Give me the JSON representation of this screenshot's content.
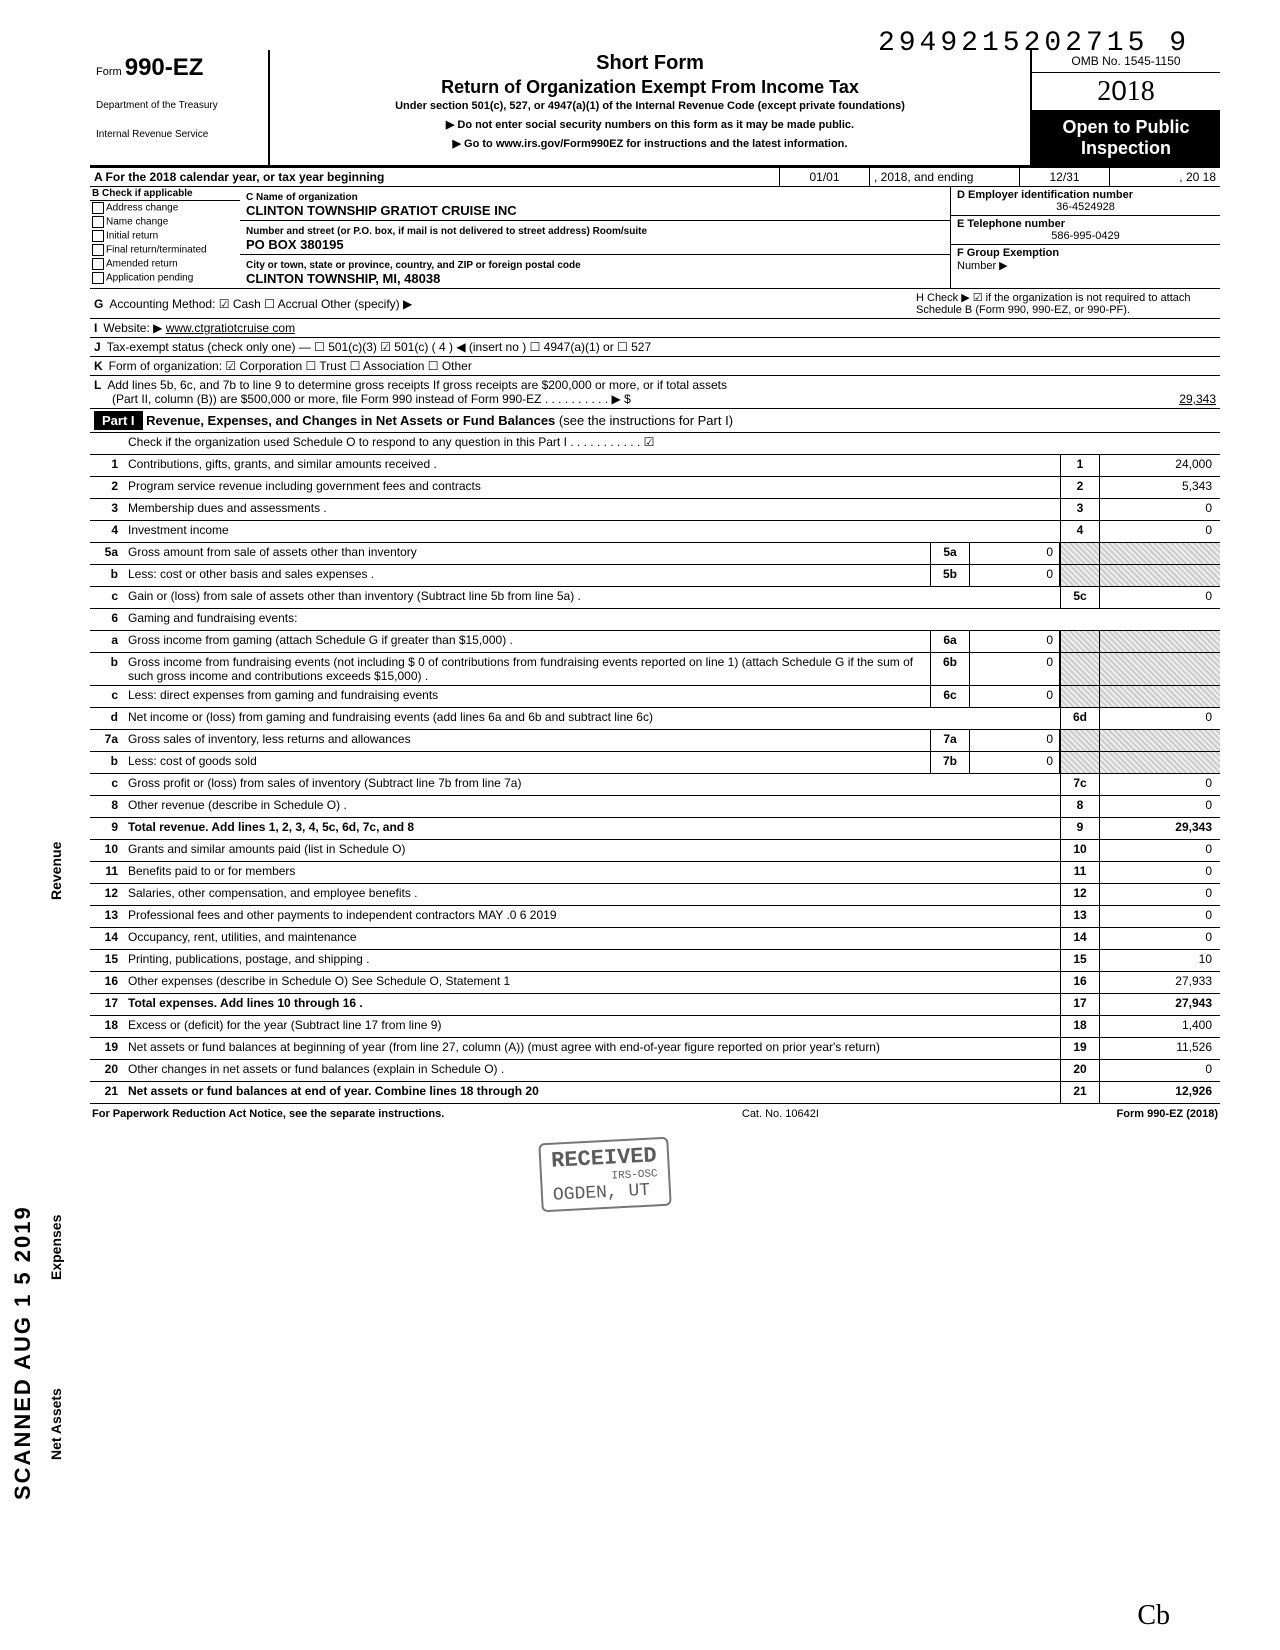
{
  "dln": "2949215202715 9",
  "header": {
    "form_prefix": "Form",
    "form_no": "990-EZ",
    "dept1": "Department of the Treasury",
    "dept2": "Internal Revenue Service",
    "short_form": "Short Form",
    "title": "Return of Organization Exempt From Income Tax",
    "under": "Under section 501(c), 527, or 4947(a)(1) of the Internal Revenue Code (except private foundations)",
    "arrow1": "▶ Do not enter social security numbers on this form as it may be made public.",
    "arrow2": "▶ Go to www.irs.gov/Form990EZ for instructions and the latest information.",
    "omb": "OMB No. 1545-1150",
    "year": "2018",
    "open1": "Open to Public",
    "open2": "Inspection"
  },
  "rowA": {
    "label": "A For the 2018 calendar year, or tax year beginning",
    "begin": "01/01",
    "mid": ", 2018, and ending",
    "end_m": "12/31",
    "end_y": ", 20  18"
  },
  "colB": {
    "hdr": "B Check if applicable",
    "items": [
      "Address change",
      "Name change",
      "Initial return",
      "Final return/terminated",
      "Amended return",
      "Application pending"
    ]
  },
  "colC": {
    "name_lbl": "C Name of organization",
    "name": "CLINTON TOWNSHIP GRATIOT CRUISE INC",
    "addr_lbl": "Number and street (or P.O. box, if mail is not delivered to street address)        Room/suite",
    "addr": "PO BOX 380195",
    "city_lbl": "City or town, state or province, country, and ZIP or foreign postal code",
    "city": "CLINTON TOWNSHIP, MI, 48038"
  },
  "colDE": {
    "d_lbl": "D Employer identification number",
    "ein": "36-4524928",
    "e_lbl": "E Telephone number",
    "phone": "586-995-0429",
    "f_lbl": "F Group Exemption",
    "f_lbl2": "Number ▶"
  },
  "lineG": {
    "k": "G",
    "text": "Accounting Method:   ☑ Cash   ☐ Accrual   Other (specify) ▶"
  },
  "lineH": {
    "text": "H Check ▶ ☑ if the organization is not required to attach Schedule B (Form 990, 990-EZ, or 990-PF)."
  },
  "lineI": {
    "k": "I",
    "lbl": "Website: ▶",
    "val": "www.ctgratiotcruise com"
  },
  "lineJ": {
    "k": "J",
    "text": "Tax-exempt status (check only one) — ☐ 501(c)(3)  ☑ 501(c) ( 4 ) ◀ (insert no ) ☐ 4947(a)(1) or  ☐ 527"
  },
  "lineK": {
    "k": "K",
    "text": "Form of organization:  ☑ Corporation   ☐ Trust   ☐ Association   ☐ Other"
  },
  "lineL": {
    "k": "L",
    "text1": "Add lines 5b, 6c, and 7b to line 9 to determine gross receipts  If gross receipts are $200,000 or more, or if total assets",
    "text2": "(Part II, column (B)) are $500,000 or more, file Form 990 instead of Form 990-EZ .   .   .   .   .   .   .   .   .   .   ▶  $",
    "val": "29,343"
  },
  "part1": {
    "label": "Part I",
    "title": "Revenue, Expenses, and Changes in Net Assets or Fund Balances",
    "rest": " (see the instructions for Part I)",
    "check": "Check if the organization used Schedule O to respond to any question in this Part I .  .  .  .  .  .  .  .  .  .  .  ☑"
  },
  "lines": {
    "l1": {
      "n": "1",
      "t": "Contributions, gifts, grants, and similar amounts received .",
      "b": "1",
      "v": "24,000"
    },
    "l2": {
      "n": "2",
      "t": "Program service revenue including government fees and contracts",
      "b": "2",
      "v": "5,343"
    },
    "l3": {
      "n": "3",
      "t": "Membership dues and assessments .",
      "b": "3",
      "v": "0"
    },
    "l4": {
      "n": "4",
      "t": "Investment income",
      "b": "4",
      "v": "0"
    },
    "l5a": {
      "n": "5a",
      "t": "Gross amount from sale of assets other than inventory",
      "mb": "5a",
      "mv": "0"
    },
    "l5b": {
      "n": "b",
      "t": "Less: cost or other basis and sales expenses .",
      "mb": "5b",
      "mv": "0"
    },
    "l5c": {
      "n": "c",
      "t": "Gain or (loss) from sale of assets other than inventory (Subtract line 5b from line 5a) .",
      "b": "5c",
      "v": "0"
    },
    "l6": {
      "n": "6",
      "t": "Gaming and fundraising events:"
    },
    "l6a": {
      "n": "a",
      "t": "Gross income from gaming (attach Schedule G if greater than $15,000) .",
      "mb": "6a",
      "mv": "0"
    },
    "l6b": {
      "n": "b",
      "t": "Gross income from fundraising events (not including  $                0 of contributions from fundraising events reported on line 1) (attach Schedule G if the sum of such gross income and contributions exceeds $15,000) .",
      "mb": "6b",
      "mv": "0"
    },
    "l6c": {
      "n": "c",
      "t": "Less: direct expenses from gaming and fundraising events",
      "mb": "6c",
      "mv": "0"
    },
    "l6d": {
      "n": "d",
      "t": "Net income or (loss) from gaming and fundraising events (add lines 6a and 6b and subtract line 6c)",
      "b": "6d",
      "v": "0"
    },
    "l7a": {
      "n": "7a",
      "t": "Gross sales of inventory, less returns and allowances",
      "mb": "7a",
      "mv": "0"
    },
    "l7b": {
      "n": "b",
      "t": "Less: cost of goods sold",
      "mb": "7b",
      "mv": "0"
    },
    "l7c": {
      "n": "c",
      "t": "Gross profit or (loss) from sales of inventory (Subtract line 7b from line 7a)",
      "b": "7c",
      "v": "0"
    },
    "l8": {
      "n": "8",
      "t": "Other revenue (describe in Schedule O) .",
      "b": "8",
      "v": "0"
    },
    "l9": {
      "n": "9",
      "t": "Total revenue. Add lines 1, 2, 3, 4, 5c, 6d, 7c, and 8",
      "b": "9",
      "v": "29,343",
      "bold": true
    },
    "l10": {
      "n": "10",
      "t": "Grants and similar amounts paid (list in Schedule O)",
      "b": "10",
      "v": "0"
    },
    "l11": {
      "n": "11",
      "t": "Benefits paid to or for members",
      "b": "11",
      "v": "0"
    },
    "l12": {
      "n": "12",
      "t": "Salaries, other compensation, and employee benefits .",
      "b": "12",
      "v": "0"
    },
    "l13": {
      "n": "13",
      "t": "Professional fees and other payments to independent contractors MAY .0 6 2019",
      "b": "13",
      "v": "0"
    },
    "l14": {
      "n": "14",
      "t": "Occupancy, rent, utilities, and maintenance",
      "b": "14",
      "v": "0"
    },
    "l15": {
      "n": "15",
      "t": "Printing, publications, postage, and shipping .",
      "b": "15",
      "v": "10"
    },
    "l16": {
      "n": "16",
      "t": "Other expenses (describe in Schedule O)  See Schedule O, Statement 1",
      "b": "16",
      "v": "27,933"
    },
    "l17": {
      "n": "17",
      "t": "Total expenses. Add lines 10 through 16 .",
      "b": "17",
      "v": "27,943",
      "bold": true
    },
    "l18": {
      "n": "18",
      "t": "Excess or (deficit) for the year (Subtract line 17 from line 9)",
      "b": "18",
      "v": "1,400"
    },
    "l19": {
      "n": "19",
      "t": "Net assets or fund balances at beginning of year (from line 27, column (A)) (must agree with end-of-year figure reported on prior year's return)",
      "b": "19",
      "v": "11,526"
    },
    "l20": {
      "n": "20",
      "t": "Other changes in net assets or fund balances (explain in Schedule O) .",
      "b": "20",
      "v": "0"
    },
    "l21": {
      "n": "21",
      "t": "Net assets or fund balances at end of year. Combine lines 18 through 20",
      "b": "21",
      "v": "12,926",
      "bold": true
    }
  },
  "stamp": {
    "l1": "RECEIVED",
    "l2": "IRS-OSC",
    "l3": "OGDEN, UT"
  },
  "side": {
    "rev": "Revenue",
    "exp": "Expenses",
    "net": "Net Assets",
    "scan": "SCANNED AUG 1 5 2019"
  },
  "footer": {
    "left": "For Paperwork Reduction Act Notice, see the separate instructions.",
    "mid": "Cat. No. 10642I",
    "right": "Form 990-EZ (2018)"
  },
  "sig": "Cb"
}
